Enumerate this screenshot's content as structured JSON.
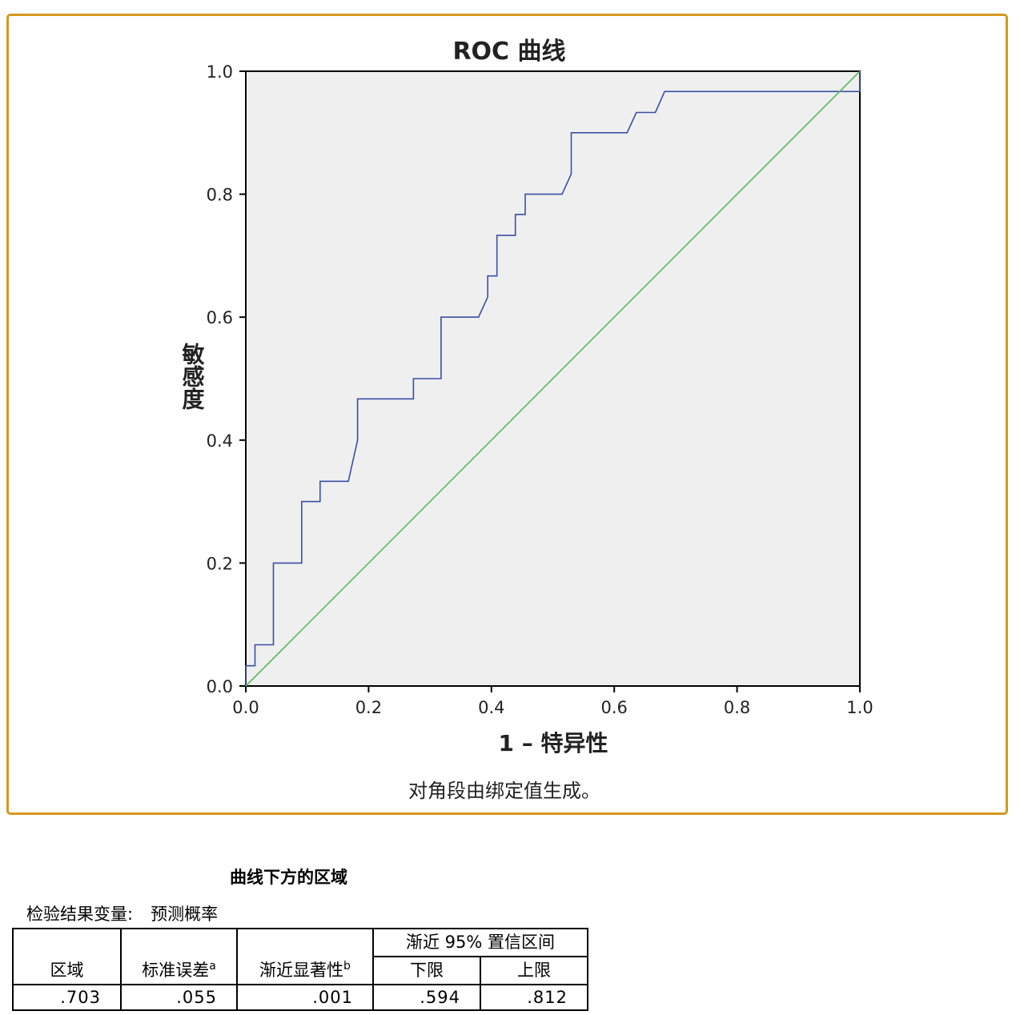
{
  "chart_data": {
    "type": "line",
    "title": "ROC 曲线",
    "xlabel": "1 – 特异性",
    "ylabel": "敏感度",
    "note": "对角段由绑定值生成。",
    "xlim": [
      0.0,
      1.0
    ],
    "ylim": [
      0.0,
      1.0
    ],
    "x_ticks": [
      "0.0",
      "0.2",
      "0.4",
      "0.6",
      "0.8",
      "1.0"
    ],
    "y_ticks": [
      "0.0",
      "0.2",
      "0.4",
      "0.6",
      "0.8",
      "1.0"
    ],
    "plot_background": "#EFEFEF",
    "grid": false,
    "legend": "none",
    "series": [
      {
        "color": "#3A4FA8",
        "points": [
          [
            0.0,
            0.0
          ],
          [
            0.0,
            0.033
          ],
          [
            0.015,
            0.033
          ],
          [
            0.015,
            0.067
          ],
          [
            0.045,
            0.067
          ],
          [
            0.045,
            0.2
          ],
          [
            0.091,
            0.2
          ],
          [
            0.091,
            0.3
          ],
          [
            0.121,
            0.3
          ],
          [
            0.121,
            0.333
          ],
          [
            0.167,
            0.333
          ],
          [
            0.182,
            0.4
          ],
          [
            0.182,
            0.467
          ],
          [
            0.273,
            0.467
          ],
          [
            0.273,
            0.5
          ],
          [
            0.318,
            0.5
          ],
          [
            0.318,
            0.6
          ],
          [
            0.379,
            0.6
          ],
          [
            0.394,
            0.633
          ],
          [
            0.394,
            0.667
          ],
          [
            0.409,
            0.667
          ],
          [
            0.409,
            0.733
          ],
          [
            0.439,
            0.733
          ],
          [
            0.439,
            0.767
          ],
          [
            0.455,
            0.767
          ],
          [
            0.455,
            0.8
          ],
          [
            0.515,
            0.8
          ],
          [
            0.53,
            0.833
          ],
          [
            0.53,
            0.9
          ],
          [
            0.621,
            0.9
          ],
          [
            0.636,
            0.933
          ],
          [
            0.667,
            0.933
          ],
          [
            0.682,
            0.967
          ],
          [
            1.0,
            0.967
          ],
          [
            1.0,
            1.0
          ]
        ]
      },
      {
        "color": "#5CB85C",
        "points": [
          [
            0.0,
            0.0
          ],
          [
            1.0,
            1.0
          ]
        ]
      }
    ]
  },
  "table": {
    "title": "曲线下方的区域",
    "test_var_label": "检验结果变量:",
    "test_var_value": "预测概率",
    "headers": {
      "area": "区域",
      "std_error": "标准误差",
      "std_error_sup": "a",
      "sig": "渐近显著性",
      "sig_sup": "b",
      "ci": "渐近 95% 置信区间",
      "lower": "下限",
      "upper": "上限"
    },
    "row": {
      "area": ".703",
      "std_error": ".055",
      "sig": ".001",
      "lower": ".594",
      "upper": ".812"
    }
  }
}
